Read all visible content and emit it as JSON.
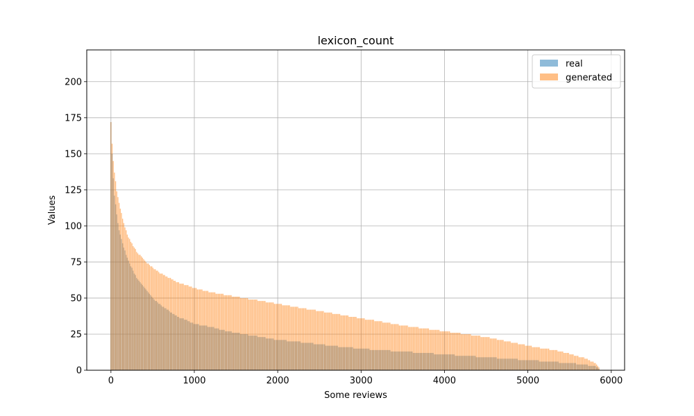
{
  "chart_data": {
    "type": "bar",
    "title": "lexicon_count",
    "xlabel": "Some reviews",
    "ylabel": "Values",
    "xlim": [
      -290,
      6160
    ],
    "ylim": [
      0,
      222
    ],
    "xticks": [
      0,
      1000,
      2000,
      3000,
      4000,
      5000,
      6000
    ],
    "yticks": [
      0,
      25,
      50,
      75,
      100,
      125,
      150,
      175,
      200
    ],
    "grid": true,
    "legend_position": "top-right",
    "bar_width": 14,
    "series": [
      {
        "name": "real",
        "color": "#1f77b4",
        "opacity": 0.5,
        "curve": [
          [
            0,
            172
          ],
          [
            20,
            140
          ],
          [
            40,
            122
          ],
          [
            70,
            108
          ],
          [
            100,
            96
          ],
          [
            150,
            86
          ],
          [
            200,
            77
          ],
          [
            300,
            65
          ],
          [
            400,
            57
          ],
          [
            500,
            50
          ],
          [
            600,
            45
          ],
          [
            700,
            41
          ],
          [
            800,
            37
          ],
          [
            900,
            35
          ],
          [
            1000,
            32
          ],
          [
            1200,
            30
          ],
          [
            1400,
            27
          ],
          [
            1600,
            25
          ],
          [
            1800,
            23
          ],
          [
            2000,
            21
          ],
          [
            2200,
            20
          ],
          [
            2500,
            18
          ],
          [
            2800,
            16
          ],
          [
            3000,
            15
          ],
          [
            3200,
            14
          ],
          [
            3500,
            13
          ],
          [
            4000,
            11
          ],
          [
            4500,
            9
          ],
          [
            5000,
            7
          ],
          [
            5500,
            5
          ],
          [
            5800,
            3
          ],
          [
            5860,
            1
          ]
        ]
      },
      {
        "name": "generated",
        "color": "#ff7f0e",
        "opacity": 0.5,
        "curve": [
          [
            0,
            172
          ],
          [
            20,
            150
          ],
          [
            40,
            138
          ],
          [
            70,
            124
          ],
          [
            100,
            115
          ],
          [
            150,
            103
          ],
          [
            200,
            93
          ],
          [
            300,
            83
          ],
          [
            400,
            76
          ],
          [
            500,
            71
          ],
          [
            600,
            67
          ],
          [
            700,
            64
          ],
          [
            800,
            61
          ],
          [
            900,
            59
          ],
          [
            1000,
            57
          ],
          [
            1200,
            54
          ],
          [
            1400,
            52
          ],
          [
            1600,
            50
          ],
          [
            1800,
            48
          ],
          [
            2000,
            46
          ],
          [
            2200,
            44
          ],
          [
            2500,
            41
          ],
          [
            2800,
            38
          ],
          [
            3000,
            36
          ],
          [
            3200,
            34
          ],
          [
            3500,
            31
          ],
          [
            4000,
            27
          ],
          [
            4500,
            23
          ],
          [
            5000,
            17
          ],
          [
            5400,
            13
          ],
          [
            5700,
            8
          ],
          [
            5800,
            5
          ],
          [
            5860,
            2
          ]
        ]
      }
    ]
  }
}
